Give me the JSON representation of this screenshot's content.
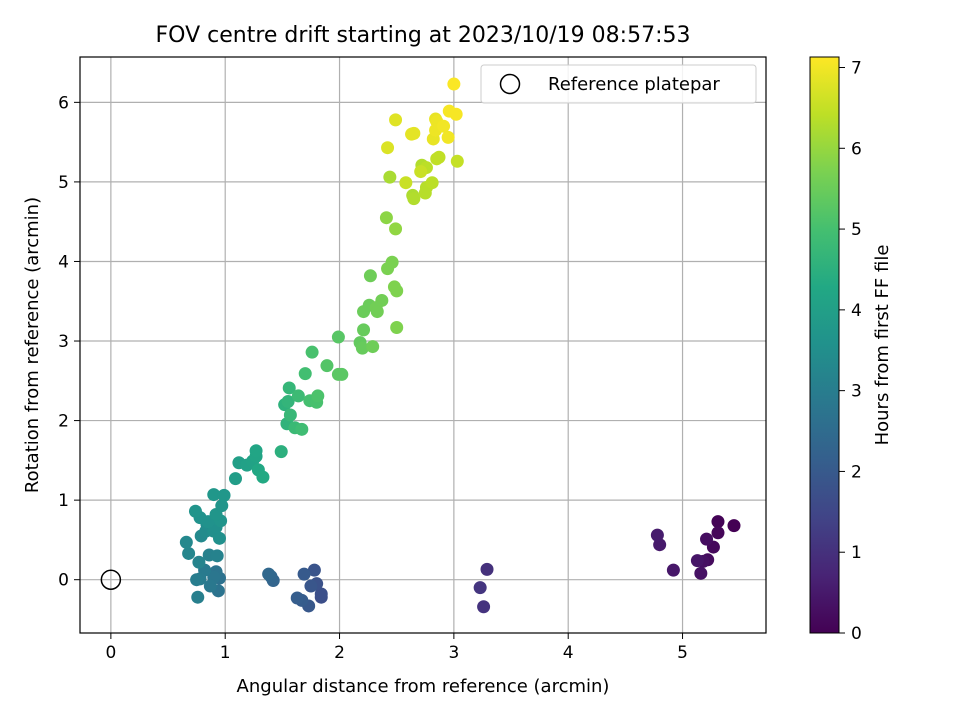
{
  "chart_data": {
    "type": "scatter",
    "title": "FOV centre drift starting at 2023/10/19 08:57:53",
    "xlabel": "Angular distance from reference (arcmin)",
    "ylabel": "Rotation from reference (arcmin)",
    "xlim": [
      -0.27,
      5.73
    ],
    "ylim": [
      -0.67,
      6.57
    ],
    "xticks": [
      0,
      1,
      2,
      3,
      4,
      5
    ],
    "yticks": [
      0,
      1,
      2,
      3,
      4,
      5,
      6
    ],
    "grid": true,
    "legend": {
      "position": "top-right",
      "entries": [
        "Reference platepar"
      ]
    },
    "colorbar": {
      "label": "Hours from first FF file",
      "min": 0,
      "max": 7.13,
      "ticks": [
        0,
        1,
        2,
        3,
        4,
        5,
        6,
        7
      ],
      "colormap": "viridis"
    },
    "reference": {
      "x": 0,
      "y": 0
    },
    "series": [
      {
        "values": [
          [
            5.45,
            0.68,
            0.0
          ],
          [
            5.31,
            0.73,
            0.05
          ],
          [
            5.31,
            0.59,
            0.1
          ],
          [
            5.27,
            0.41,
            0.15
          ],
          [
            5.22,
            0.25,
            0.2
          ],
          [
            5.21,
            0.51,
            0.25
          ],
          [
            5.18,
            0.23,
            0.3
          ],
          [
            5.16,
            0.08,
            0.35
          ],
          [
            5.13,
            0.24,
            0.4
          ],
          [
            4.92,
            0.12,
            0.45
          ],
          [
            4.8,
            0.44,
            0.5
          ],
          [
            4.78,
            0.56,
            0.55
          ],
          [
            3.29,
            0.13,
            1.0
          ],
          [
            3.26,
            -0.34,
            1.05
          ],
          [
            3.23,
            -0.1,
            1.1
          ],
          [
            1.84,
            -0.22,
            1.7
          ],
          [
            1.84,
            -0.18,
            1.75
          ],
          [
            1.8,
            -0.05,
            1.8
          ],
          [
            1.78,
            0.12,
            1.85
          ],
          [
            1.75,
            -0.08,
            1.9
          ],
          [
            1.73,
            -0.33,
            1.95
          ],
          [
            1.69,
            0.07,
            2.0
          ],
          [
            1.67,
            -0.26,
            2.05
          ],
          [
            1.63,
            -0.23,
            2.1
          ],
          [
            1.42,
            -0.01,
            2.3
          ],
          [
            1.4,
            0.04,
            2.35
          ],
          [
            1.38,
            0.07,
            2.4
          ],
          [
            0.95,
            0.02,
            2.65
          ],
          [
            0.94,
            -0.14,
            2.7
          ],
          [
            0.92,
            0.1,
            2.75
          ],
          [
            0.9,
            0.03,
            2.8
          ],
          [
            0.87,
            -0.08,
            2.85
          ],
          [
            0.82,
            0.12,
            2.9
          ],
          [
            0.78,
            0.01,
            2.95
          ],
          [
            0.75,
            0.0,
            3.0
          ],
          [
            0.76,
            -0.22,
            3.05
          ],
          [
            0.86,
            0.31,
            3.1
          ],
          [
            0.93,
            0.3,
            3.15
          ],
          [
            0.77,
            0.22,
            3.2
          ],
          [
            0.68,
            0.33,
            3.25
          ],
          [
            0.66,
            0.47,
            3.3
          ],
          [
            0.79,
            0.55,
            3.35
          ],
          [
            0.83,
            0.61,
            3.4
          ],
          [
            0.84,
            0.7,
            3.45
          ],
          [
            0.9,
            0.61,
            3.5
          ],
          [
            0.95,
            0.52,
            3.55
          ],
          [
            0.92,
            0.66,
            3.55
          ],
          [
            0.85,
            0.73,
            3.6
          ],
          [
            0.78,
            0.78,
            3.6
          ],
          [
            0.74,
            0.86,
            3.65
          ],
          [
            0.96,
            0.74,
            3.65
          ],
          [
            0.92,
            0.82,
            3.7
          ],
          [
            0.97,
            0.93,
            3.7
          ],
          [
            0.9,
            1.07,
            3.75
          ],
          [
            0.99,
            1.06,
            3.75
          ],
          [
            1.09,
            1.27,
            3.95
          ],
          [
            1.12,
            1.47,
            4.0
          ],
          [
            1.19,
            1.44,
            4.05
          ],
          [
            1.24,
            1.49,
            4.1
          ],
          [
            1.27,
            1.55,
            4.15
          ],
          [
            1.27,
            1.62,
            4.2
          ],
          [
            1.29,
            1.38,
            4.25
          ],
          [
            1.33,
            1.29,
            4.3
          ],
          [
            1.49,
            1.61,
            4.5
          ],
          [
            1.52,
            2.2,
            4.55
          ],
          [
            1.54,
            1.96,
            4.6
          ],
          [
            1.55,
            2.24,
            4.65
          ],
          [
            1.56,
            2.41,
            4.7
          ],
          [
            1.57,
            2.07,
            4.75
          ],
          [
            1.61,
            1.91,
            4.8
          ],
          [
            1.64,
            2.31,
            4.85
          ],
          [
            1.67,
            1.89,
            4.9
          ],
          [
            1.7,
            2.59,
            4.95
          ],
          [
            1.74,
            2.25,
            5.0
          ],
          [
            1.76,
            2.86,
            5.05
          ],
          [
            1.8,
            2.23,
            5.05
          ],
          [
            1.81,
            2.31,
            5.1
          ],
          [
            1.89,
            2.69,
            5.2
          ],
          [
            1.99,
            3.05,
            5.25
          ],
          [
            1.99,
            2.58,
            5.3
          ],
          [
            2.02,
            2.58,
            5.3
          ],
          [
            2.18,
            2.98,
            5.4
          ],
          [
            2.2,
            2.91,
            5.45
          ],
          [
            2.21,
            3.14,
            5.45
          ],
          [
            2.21,
            3.37,
            5.5
          ],
          [
            2.26,
            3.45,
            5.5
          ],
          [
            2.27,
            3.82,
            5.55
          ],
          [
            2.29,
            2.93,
            5.55
          ],
          [
            2.32,
            3.42,
            5.6
          ],
          [
            2.33,
            3.37,
            5.6
          ],
          [
            2.37,
            3.51,
            5.6
          ],
          [
            2.42,
            3.91,
            5.7
          ],
          [
            2.46,
            3.99,
            5.7
          ],
          [
            2.48,
            3.68,
            5.75
          ],
          [
            2.5,
            3.63,
            5.75
          ],
          [
            2.5,
            3.17,
            5.75
          ],
          [
            2.41,
            4.55,
            5.9
          ],
          [
            2.49,
            4.41,
            5.95
          ],
          [
            2.44,
            5.06,
            6.2
          ],
          [
            2.64,
            4.83,
            6.25
          ],
          [
            2.65,
            4.79,
            6.3
          ],
          [
            2.72,
            5.21,
            6.3
          ],
          [
            2.75,
            4.86,
            6.35
          ],
          [
            2.76,
            4.93,
            6.35
          ],
          [
            2.76,
            5.18,
            6.4
          ],
          [
            2.81,
            4.99,
            6.4
          ],
          [
            2.85,
            5.29,
            6.45
          ],
          [
            2.87,
            5.31,
            6.45
          ],
          [
            3.03,
            5.26,
            6.5
          ],
          [
            2.58,
            4.99,
            6.55
          ],
          [
            2.71,
            5.13,
            6.55
          ],
          [
            2.42,
            5.43,
            6.75
          ],
          [
            2.49,
            5.78,
            6.8
          ],
          [
            2.63,
            5.6,
            6.85
          ],
          [
            2.65,
            5.61,
            6.85
          ],
          [
            2.82,
            5.54,
            6.9
          ],
          [
            2.84,
            5.79,
            6.9
          ],
          [
            2.85,
            5.76,
            6.95
          ],
          [
            2.84,
            5.65,
            6.95
          ],
          [
            2.91,
            5.7,
            7.0
          ],
          [
            2.95,
            5.56,
            7.0
          ],
          [
            2.96,
            5.89,
            7.05
          ],
          [
            3.02,
            5.85,
            7.05
          ],
          [
            3.0,
            6.23,
            7.1
          ]
        ]
      }
    ]
  }
}
